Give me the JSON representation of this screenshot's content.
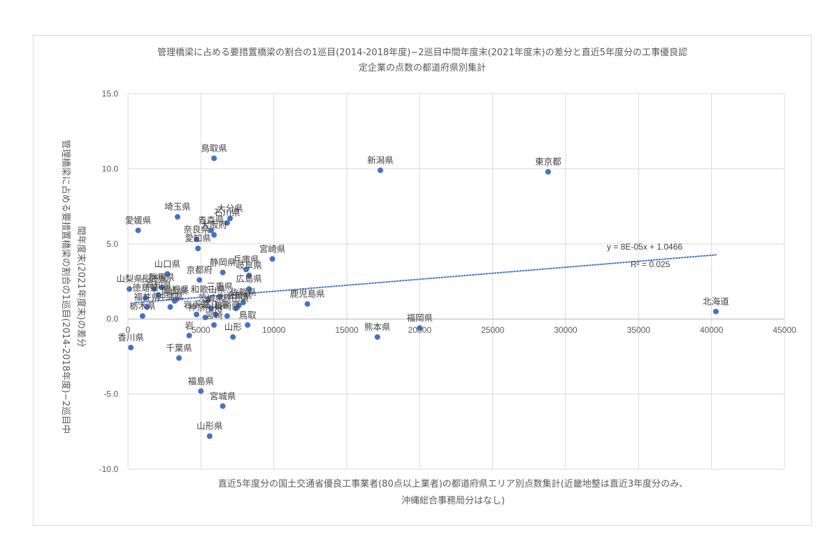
{
  "chart_data": {
    "type": "scatter",
    "title_lines": [
      "管理橋梁に占める要措置橋梁の割合の1巡目(2014-2018年度)−2巡目中間年度末(2021年度末)の差分と直近5年度分の工事優良認",
      "定企業の点数の都道府県別集計"
    ],
    "xlabel_lines": [
      "直近5年度分の国土交通省優良工事業者(80点以上業者)の都道府県エリア別点数集計(近畿地整は直近3年度分のみ、",
      "沖縄総合事務局分はなし)"
    ],
    "ylabel_lines": [
      "管理橋梁に占める要措置橋梁の割合の1巡目(2014-2018年度)−2巡目中",
      "間年度末(2021年度末)の差分"
    ],
    "xlim": [
      0,
      45000
    ],
    "ylim": [
      -10,
      15
    ],
    "x_ticks": [
      "0",
      "5000",
      "10000",
      "15000",
      "20000",
      "25000",
      "30000",
      "35000",
      "40000",
      "45000"
    ],
    "y_ticks": [
      "15.0",
      "10.0",
      "5.0",
      "0.0",
      "-5.0",
      "-10.0"
    ],
    "grid": "vertical-and-horizontal",
    "marker_color": "#4472c4",
    "trendline": {
      "type": "linear",
      "color": "#4472c4",
      "style": "dotted",
      "slope": 8e-05,
      "intercept": 1.0466,
      "x_range": [
        500,
        40300
      ],
      "equation": "y = 8E-05x + 1.0466",
      "r2": "R² = 0.025"
    },
    "points": [
      {
        "label": "北海道",
        "x": 40300,
        "y": 0.5
      },
      {
        "label": "東京都",
        "x": 28800,
        "y": 9.8
      },
      {
        "label": "新潟県",
        "x": 17300,
        "y": 9.9
      },
      {
        "label": "福岡県",
        "x": 20000,
        "y": -0.6
      },
      {
        "label": "熊本県",
        "x": 17100,
        "y": -1.2
      },
      {
        "label": "鹿児島県",
        "x": 12300,
        "y": 1.0
      },
      {
        "label": "宮崎県",
        "x": 9900,
        "y": 4.0
      },
      {
        "label": "鳥取県",
        "x": 5900,
        "y": 10.7
      },
      {
        "label": "大分県",
        "x": 7000,
        "y": 6.7
      },
      {
        "label": "石川県",
        "x": 6800,
        "y": 6.4
      },
      {
        "label": "埼玉県",
        "x": 3400,
        "y": 6.8
      },
      {
        "label": "愛媛県",
        "x": 700,
        "y": 5.9
      },
      {
        "label": "青森県",
        "x": 5700,
        "y": 5.9
      },
      {
        "label": "大阪府",
        "x": 5900,
        "y": 5.6
      },
      {
        "label": "奈良県",
        "x": 4700,
        "y": 5.3
      },
      {
        "label": "静岡県",
        "x": 6500,
        "y": 3.1
      },
      {
        "label": "兵庫県",
        "x": 8100,
        "y": 3.3
      },
      {
        "label": "岐阜県",
        "x": 8300,
        "y": 2.9
      },
      {
        "label": "山口県",
        "x": 2700,
        "y": 3.0
      },
      {
        "label": "愛知県",
        "x": 4800,
        "y": 4.7
      },
      {
        "label": "京都府",
        "x": 4900,
        "y": 2.6
      },
      {
        "label": "山梨県",
        "x": 100,
        "y": 2.0
      },
      {
        "label": "長野県",
        "x": 1800,
        "y": 2.0
      },
      {
        "label": "群馬県",
        "x": 2300,
        "y": 2.1
      },
      {
        "label": "徳島県",
        "x": 1200,
        "y": 1.4
      },
      {
        "label": "高知県",
        "x": 2100,
        "y": 1.6
      },
      {
        "label": "栃木県",
        "x": 1000,
        "y": 0.2
      },
      {
        "label": "島根県",
        "x": 3300,
        "y": 1.3
      },
      {
        "label": "広島県",
        "x": 8300,
        "y": 2.0
      },
      {
        "label": "佐賀県",
        "x": 7900,
        "y": 1.1
      },
      {
        "label": "三重県",
        "x": 6300,
        "y": 1.5
      },
      {
        "label": "和歌山県",
        "x": 5500,
        "y": 1.3
      },
      {
        "label": "滋賀県",
        "x": 7600,
        "y": 0.9
      },
      {
        "label": "秋田県",
        "x": 7400,
        "y": 0.7
      },
      {
        "label": "茨城県",
        "x": 5700,
        "y": 0.7
      },
      {
        "label": "富山県",
        "x": 6000,
        "y": 0.3
      },
      {
        "label": "長崎県",
        "x": 6800,
        "y": 0.2
      },
      {
        "label": "神奈川県",
        "x": 5300,
        "y": 0.1
      },
      {
        "label": "福井県",
        "x": 1300,
        "y": 0.8
      },
      {
        "label": "沖縄県",
        "x": 2900,
        "y": 0.8
      },
      {
        "label": "岡山県",
        "x": 3200,
        "y": 1.2
      },
      {
        "label": "岩手県",
        "x": 4700,
        "y": 0.3
      },
      {
        "label": "宮崎",
        "x": 5900,
        "y": -0.4
      },
      {
        "label": "山形",
        "x": 7200,
        "y": -1.2
      },
      {
        "label": "鳥取",
        "x": 8200,
        "y": -0.4
      },
      {
        "label": "香川県",
        "x": 200,
        "y": -1.9
      },
      {
        "label": "千葉県",
        "x": 3500,
        "y": -2.6
      },
      {
        "label": "福島県",
        "x": 5000,
        "y": -4.8
      },
      {
        "label": "宮城県",
        "x": 6500,
        "y": -5.8
      },
      {
        "label": "山形県",
        "x": 5600,
        "y": -7.8
      },
      {
        "label": "岩",
        "x": 4200,
        "y": -1.1
      }
    ]
  }
}
